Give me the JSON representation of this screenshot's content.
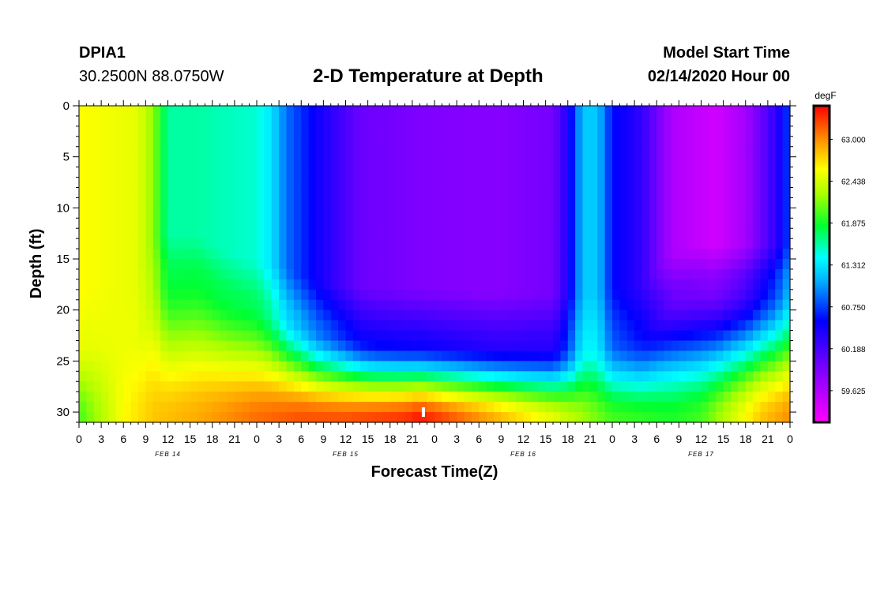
{
  "header": {
    "station_id": "DPIA1",
    "coords": "30.2500N 88.0750W",
    "title": "2-D Temperature at Depth",
    "start_label": "Model Start Time",
    "start_value": "02/14/2020 Hour 00"
  },
  "chart_data": {
    "type": "heatmap",
    "title": "2-D Temperature at Depth",
    "xlabel": "Forecast Time(Z)",
    "ylabel": "Depth (ft)",
    "x_hours": [
      0,
      96
    ],
    "ylim": [
      0,
      31
    ],
    "y_ticks": [
      0,
      5,
      10,
      15,
      20,
      25,
      30
    ],
    "x_tick_step_hours": 3,
    "x_tick_labels": [
      "0",
      "3",
      "6",
      "9",
      "12",
      "15",
      "18",
      "21",
      "0",
      "3",
      "6",
      "9",
      "12",
      "15",
      "18",
      "21",
      "0",
      "3",
      "6",
      "9",
      "12",
      "15",
      "18",
      "21",
      "0",
      "3",
      "6",
      "9",
      "12",
      "15",
      "18",
      "21",
      "0"
    ],
    "date_labels": [
      {
        "hour": 12,
        "label": "FEB 14"
      },
      {
        "hour": 36,
        "label": "FEB 15"
      },
      {
        "hour": 60,
        "label": "FEB 16"
      },
      {
        "hour": 84,
        "label": "FEB 17"
      }
    ],
    "colorbar": {
      "units": "degF",
      "min": 59.2,
      "max": 63.45,
      "tick_values": [
        63.0,
        62.438,
        61.875,
        61.312,
        60.75,
        60.188,
        59.625
      ],
      "tick_labels": [
        "63.000",
        "62.438",
        "61.875",
        "61.312",
        "60.750",
        "60.188",
        "59.625"
      ]
    },
    "surface_temp_degF": [
      [
        0,
        62.6
      ],
      [
        8,
        62.5
      ],
      [
        10,
        62.2
      ],
      [
        12,
        61.6
      ],
      [
        16,
        61.6
      ],
      [
        24,
        61.5
      ],
      [
        26,
        61.3
      ],
      [
        28,
        60.9
      ],
      [
        32,
        60.5
      ],
      [
        38,
        60.0
      ],
      [
        46,
        59.9
      ],
      [
        56,
        59.85
      ],
      [
        64,
        59.95
      ],
      [
        66,
        60.4
      ],
      [
        68,
        61.2
      ],
      [
        70,
        61.2
      ],
      [
        72,
        60.6
      ],
      [
        76,
        60.3
      ],
      [
        80,
        59.65
      ],
      [
        86,
        59.45
      ],
      [
        90,
        59.7
      ],
      [
        94,
        60.3
      ],
      [
        96,
        60.8
      ]
    ],
    "mixed_layer_depth_ft": [
      [
        0,
        23
      ],
      [
        8,
        22
      ],
      [
        10,
        16
      ],
      [
        16,
        16
      ],
      [
        20,
        18
      ],
      [
        24,
        19
      ],
      [
        28,
        20
      ],
      [
        32,
        21.5
      ],
      [
        40,
        22.5
      ],
      [
        60,
        23
      ],
      [
        68,
        23
      ],
      [
        76,
        22
      ],
      [
        80,
        18
      ],
      [
        84,
        17
      ],
      [
        96,
        17
      ]
    ],
    "bottom_temp_degF": [
      [
        0,
        62.0
      ],
      [
        3,
        62.3
      ],
      [
        6,
        62.6
      ],
      [
        10,
        62.8
      ],
      [
        16,
        62.9
      ],
      [
        24,
        63.1
      ],
      [
        30,
        63.2
      ],
      [
        36,
        63.2
      ],
      [
        44,
        63.3
      ],
      [
        46,
        63.4
      ],
      [
        50,
        63.2
      ],
      [
        56,
        62.9
      ],
      [
        64,
        62.5
      ],
      [
        72,
        62.0
      ],
      [
        80,
        61.9
      ],
      [
        84,
        62.0
      ],
      [
        88,
        62.4
      ],
      [
        92,
        62.8
      ],
      [
        96,
        63.0
      ]
    ],
    "annotation": {
      "hour": 46.5,
      "depth_ft": 30,
      "marker": "max"
    }
  }
}
